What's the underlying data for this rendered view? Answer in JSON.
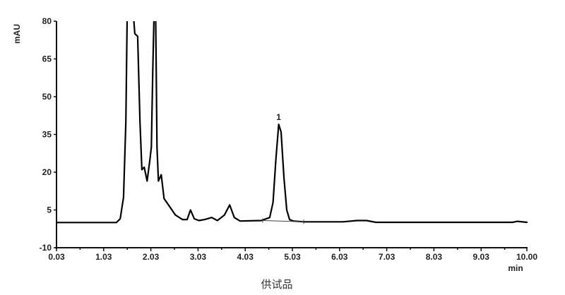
{
  "chart_data": {
    "type": "line",
    "title": "",
    "caption": "供试品",
    "xlabel": "min",
    "ylabel": "mAU",
    "xlim": [
      0.03,
      10.0
    ],
    "ylim": [
      -10,
      80
    ],
    "x_ticks": [
      "0.03",
      "1.03",
      "2.03",
      "3.03",
      "4.03",
      "5.03",
      "6.03",
      "7.03",
      "8.03",
      "9.03",
      "10.00"
    ],
    "y_ticks": [
      "80",
      "65",
      "50",
      "35",
      "20",
      "5",
      "-10"
    ],
    "grid": false,
    "line_color": "#000000",
    "series": [
      {
        "x": [
          0.03,
          1.3,
          1.38,
          1.45,
          1.5,
          1.53,
          1.65,
          1.69,
          1.75,
          1.8,
          1.84,
          1.89,
          1.95,
          2.01,
          2.04,
          2.07,
          2.1,
          2.13,
          2.16,
          2.19,
          2.25,
          2.31,
          2.43,
          2.55,
          2.7,
          2.8,
          2.87,
          2.95,
          3.05,
          3.17,
          3.32,
          3.44,
          3.59,
          3.7,
          3.8,
          3.92,
          4.37,
          4.55,
          4.62,
          4.68,
          4.74,
          4.79,
          4.85,
          4.91,
          4.97,
          5.05,
          5.27,
          6.1,
          6.4,
          6.6,
          6.8,
          9.7,
          9.8,
          10.0
        ],
        "y": [
          0,
          0,
          1.5,
          10,
          40,
          85,
          85,
          75,
          74,
          40,
          21,
          22,
          16.5,
          25,
          30,
          60,
          85,
          85,
          30,
          16.5,
          19,
          9.5,
          6.3,
          3,
          1.2,
          1.2,
          5,
          1.5,
          0.8,
          1.2,
          2,
          0.8,
          3,
          7,
          2,
          0.6,
          0.8,
          2,
          8,
          25,
          39,
          36,
          18,
          5,
          1.2,
          0.6,
          0.3,
          0.3,
          0.8,
          0.8,
          0.1,
          0.1,
          0.5,
          0.1
        ]
      }
    ],
    "peak_labels": [
      {
        "label": "1",
        "x": 4.74,
        "y": 39
      }
    ],
    "integration_baseline": {
      "x": [
        4.4,
        5.27
      ],
      "y": [
        0.8,
        0.3
      ]
    }
  }
}
